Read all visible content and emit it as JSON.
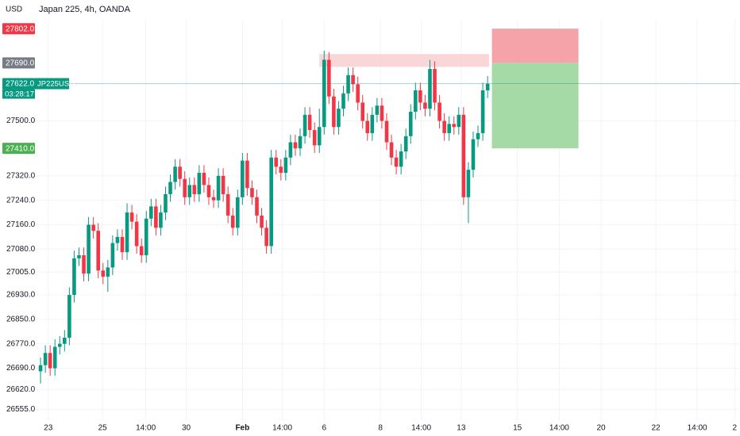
{
  "chart_data": {
    "type": "candlestick",
    "title": "Japan 225, 4h, OANDA",
    "currency": "USD",
    "up_color": "#089981",
    "down_color": "#f23645",
    "grid": true,
    "ylim": [
      26520,
      27870
    ],
    "xlim": [
      -1,
      145.5
    ],
    "yticks": [
      {
        "value": 27500,
        "label": "27500.0"
      },
      {
        "value": 27320,
        "label": "27320.0"
      },
      {
        "value": 27240,
        "label": "27240.0"
      },
      {
        "value": 27160,
        "label": "27160.0"
      },
      {
        "value": 27080,
        "label": "27080.0"
      },
      {
        "value": 27005,
        "label": "27005.0"
      },
      {
        "value": 26930,
        "label": "26930.0"
      },
      {
        "value": 26850,
        "label": "26850.0"
      },
      {
        "value": 26770,
        "label": "26770.0"
      },
      {
        "value": 26690,
        "label": "26690.0"
      },
      {
        "value": 26620,
        "label": "26620.0"
      },
      {
        "value": 26555,
        "label": "26555.0"
      }
    ],
    "xticks": [
      {
        "value": 1.6,
        "label": "23"
      },
      {
        "value": 12.9,
        "label": "25"
      },
      {
        "value": 21.9,
        "label": "14:00"
      },
      {
        "value": 30.3,
        "label": "30"
      },
      {
        "value": 42,
        "label": "Feb",
        "bold": true
      },
      {
        "value": 50.3,
        "label": "14:00"
      },
      {
        "value": 59,
        "label": "6"
      },
      {
        "value": 70.7,
        "label": "8"
      },
      {
        "value": 79.2,
        "label": "14:00"
      },
      {
        "value": 87.5,
        "label": "13"
      },
      {
        "value": 99.2,
        "label": "15"
      },
      {
        "value": 107.9,
        "label": "14:00"
      },
      {
        "value": 116.6,
        "label": "20"
      },
      {
        "value": 128,
        "label": "22"
      },
      {
        "value": 136.6,
        "label": "14:00"
      },
      {
        "value": 144.4,
        "label": "2"
      }
    ],
    "open": [
      26680,
      26700,
      26740,
      26690,
      26760,
      26770,
      26790,
      26930,
      27050,
      27060,
      27000,
      27160,
      27140,
      27010,
      26990,
      27020,
      27100,
      27120,
      27070,
      27200,
      27170,
      27090,
      27060,
      27180,
      27220,
      27150,
      27200,
      27260,
      27300,
      27350,
      27310,
      27250,
      27290,
      27260,
      27330,
      27290,
      27250,
      27240,
      27320,
      27260,
      27190,
      27150,
      27250,
      27370,
      27280,
      27250,
      27190,
      27150,
      27090,
      27380,
      27350,
      27330,
      27380,
      27430,
      27410,
      27450,
      27520,
      27470,
      27420,
      27480,
      27700,
      27580,
      27480,
      27540,
      27590,
      27650,
      27620,
      27560,
      27500,
      27460,
      27520,
      27550,
      27500,
      27430,
      27380,
      27350,
      27400,
      27450,
      27530,
      27600,
      27560,
      27540,
      27670,
      27560,
      27500,
      27460,
      27490,
      27480,
      27520,
      27250,
      27340,
      27440,
      27460,
      27600
    ],
    "high": [
      26725,
      26765,
      26765,
      26785,
      26795,
      26815,
      26955,
      27075,
      27085,
      27085,
      27185,
      27185,
      27165,
      27035,
      27045,
      27125,
      27145,
      27145,
      27230,
      27225,
      27195,
      27115,
      27205,
      27245,
      27245,
      27225,
      27285,
      27325,
      27375,
      27375,
      27335,
      27315,
      27315,
      27355,
      27355,
      27315,
      27275,
      27345,
      27345,
      27285,
      27215,
      27275,
      27395,
      27395,
      27305,
      27275,
      27215,
      27175,
      27405,
      27405,
      27375,
      27405,
      27455,
      27455,
      27475,
      27545,
      27545,
      27495,
      27540,
      27730,
      27725,
      27605,
      27565,
      27615,
      27675,
      27675,
      27645,
      27585,
      27525,
      27545,
      27575,
      27575,
      27525,
      27455,
      27405,
      27425,
      27475,
      27555,
      27625,
      27625,
      27585,
      27700,
      27695,
      27585,
      27525,
      27515,
      27515,
      27545,
      27545,
      27365,
      27465,
      27485,
      27625,
      27647
    ],
    "low": [
      26640,
      26675,
      26665,
      26665,
      26735,
      26745,
      26765,
      26905,
      27025,
      26975,
      26975,
      27115,
      26985,
      26965,
      26940,
      26995,
      27075,
      27045,
      27045,
      27145,
      27065,
      27035,
      27035,
      27155,
      27125,
      27125,
      27175,
      27235,
      27275,
      27285,
      27225,
      27225,
      27235,
      27235,
      27265,
      27225,
      27215,
      27215,
      27235,
      27165,
      27125,
      27125,
      27225,
      27255,
      27225,
      27165,
      27125,
      27065,
      27065,
      27325,
      27305,
      27305,
      27355,
      27385,
      27385,
      27425,
      27445,
      27395,
      27395,
      27455,
      27555,
      27455,
      27455,
      27515,
      27565,
      27595,
      27535,
      27475,
      27435,
      27435,
      27495,
      27475,
      27405,
      27355,
      27325,
      27325,
      27375,
      27425,
      27505,
      27535,
      27515,
      27515,
      27535,
      27475,
      27435,
      27435,
      27455,
      27455,
      27225,
      27165,
      27315,
      27415,
      27435,
      27575
    ],
    "close": [
      26700,
      26740,
      26690,
      26760,
      26770,
      26790,
      26930,
      27050,
      27060,
      27000,
      27160,
      27140,
      27010,
      26990,
      27020,
      27100,
      27120,
      27070,
      27200,
      27170,
      27090,
      27060,
      27180,
      27220,
      27150,
      27200,
      27260,
      27300,
      27350,
      27310,
      27250,
      27290,
      27260,
      27330,
      27290,
      27250,
      27240,
      27320,
      27260,
      27190,
      27150,
      27250,
      27370,
      27280,
      27250,
      27190,
      27150,
      27090,
      27380,
      27350,
      27330,
      27380,
      27430,
      27410,
      27450,
      27520,
      27470,
      27420,
      27480,
      27700,
      27580,
      27480,
      27540,
      27590,
      27650,
      27620,
      27560,
      27500,
      27460,
      27520,
      27550,
      27500,
      27430,
      27380,
      27350,
      27400,
      27450,
      27530,
      27600,
      27560,
      27540,
      27670,
      27560,
      27500,
      27460,
      27490,
      27480,
      27520,
      27250,
      27340,
      27440,
      27460,
      27600,
      27622
    ],
    "zone": {
      "from": 58,
      "to": 93.3,
      "low": 27677,
      "high": 27719,
      "color": "#f7c9cc"
    },
    "position": {
      "from": 93.9,
      "to": 111.9,
      "stop_color": "#f5a3a8",
      "target_color": "#a5d9a6"
    },
    "price_tags": [
      {
        "value": 27802,
        "label": "27802.0",
        "color": "#f23645"
      },
      {
        "value": 27690,
        "label": "27690.0",
        "color": "#787b86"
      },
      {
        "value": 27622,
        "label": "27622.0",
        "color": "#089981",
        "symbol": "JP225USD",
        "countdown": "03:28:17"
      },
      {
        "value": 27410,
        "label": "27410.0",
        "color": "#4caf50"
      }
    ]
  }
}
